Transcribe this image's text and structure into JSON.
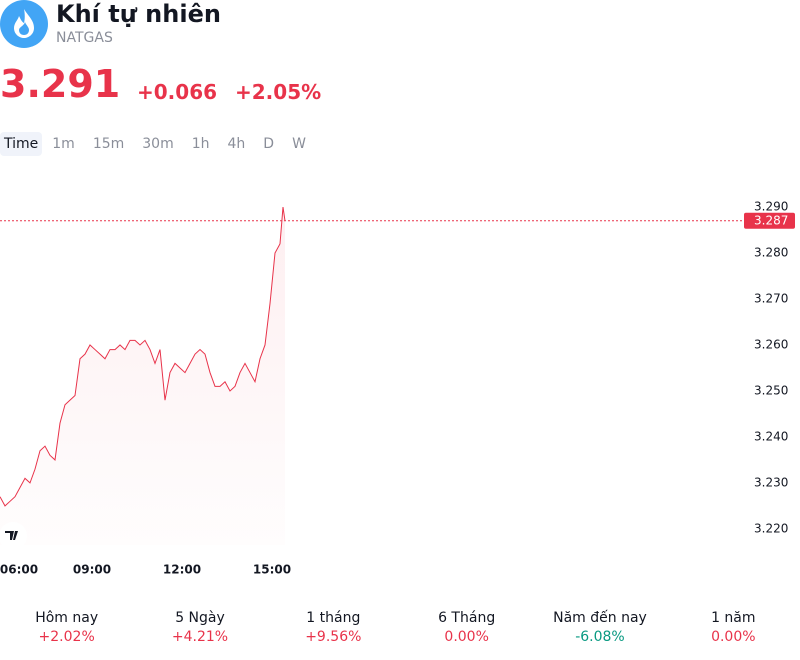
{
  "header": {
    "title": "Khí tự nhiên",
    "symbol": "NATGAS",
    "price": "3.291",
    "change": "+0.066",
    "change_pct": "+2.05%"
  },
  "timeframes": [
    "Time",
    "1m",
    "15m",
    "30m",
    "1h",
    "4h",
    "D",
    "W"
  ],
  "chart_data": {
    "type": "line",
    "color": "#e8334a",
    "x": [
      "05:56",
      "06:06",
      "06:16",
      "06:26",
      "06:36",
      "06:46",
      "06:56",
      "07:06",
      "07:16",
      "07:26",
      "07:36",
      "07:46",
      "07:56",
      "08:06",
      "08:16",
      "08:26",
      "08:36",
      "08:46",
      "08:56",
      "09:06",
      "09:16",
      "09:26",
      "09:36",
      "09:46",
      "09:56",
      "10:06",
      "10:16",
      "10:26",
      "10:36",
      "10:46",
      "10:56",
      "11:06",
      "11:16",
      "11:26",
      "11:36",
      "11:46",
      "11:56",
      "12:06",
      "12:16",
      "12:26",
      "12:36",
      "12:46",
      "12:56",
      "13:06",
      "13:16",
      "13:26",
      "13:36",
      "13:46",
      "13:56",
      "14:06",
      "14:16",
      "14:26",
      "14:36",
      "14:46",
      "14:56",
      "15:06",
      "15:16",
      "15:22",
      "15:26"
    ],
    "series": [
      {
        "name": "NATGAS",
        "color": "#e8334a",
        "values": [
          3.227,
          3.225,
          3.226,
          3.227,
          3.229,
          3.231,
          3.23,
          3.233,
          3.237,
          3.238,
          3.236,
          3.235,
          3.243,
          3.247,
          3.248,
          3.249,
          3.257,
          3.258,
          3.26,
          3.259,
          3.258,
          3.257,
          3.259,
          3.259,
          3.26,
          3.259,
          3.261,
          3.261,
          3.26,
          3.261,
          3.259,
          3.256,
          3.259,
          3.248,
          3.254,
          3.256,
          3.255,
          3.254,
          3.256,
          3.258,
          3.259,
          3.258,
          3.254,
          3.251,
          3.251,
          3.252,
          3.25,
          3.251,
          3.254,
          3.256,
          3.254,
          3.252,
          3.257,
          3.26,
          3.269,
          3.28,
          3.282,
          3.29,
          3.287
        ]
      }
    ],
    "xlim": [
      "05:56",
      "30:36"
    ],
    "xticks": [
      "06:00",
      "09:00",
      "12:00",
      "15:00"
    ],
    "ylim": [
      3.2165,
      3.2937
    ],
    "yticks": [
      {
        "value": 3.22,
        "label": "3.220"
      },
      {
        "value": 3.23,
        "label": "3.230"
      },
      {
        "value": 3.24,
        "label": "3.240"
      },
      {
        "value": 3.25,
        "label": "3.250"
      },
      {
        "value": 3.26,
        "label": "3.260"
      },
      {
        "value": 3.27,
        "label": "3.270"
      },
      {
        "value": 3.28,
        "label": "3.280"
      },
      {
        "value": 3.29,
        "label": "3.290"
      }
    ],
    "last_price": 3.287
  },
  "periods": [
    {
      "label": "Hôm nay",
      "value": "+2.02%"
    },
    {
      "label": "5 Ngày",
      "value": "+4.21%"
    },
    {
      "label": "1 tháng",
      "value": "+9.56%"
    },
    {
      "label": "6 Tháng",
      "value": "0.00%"
    },
    {
      "label": "Năm đến nay",
      "value": "-6.08%"
    },
    {
      "label": "1 năm",
      "value": "0.00%"
    }
  ]
}
